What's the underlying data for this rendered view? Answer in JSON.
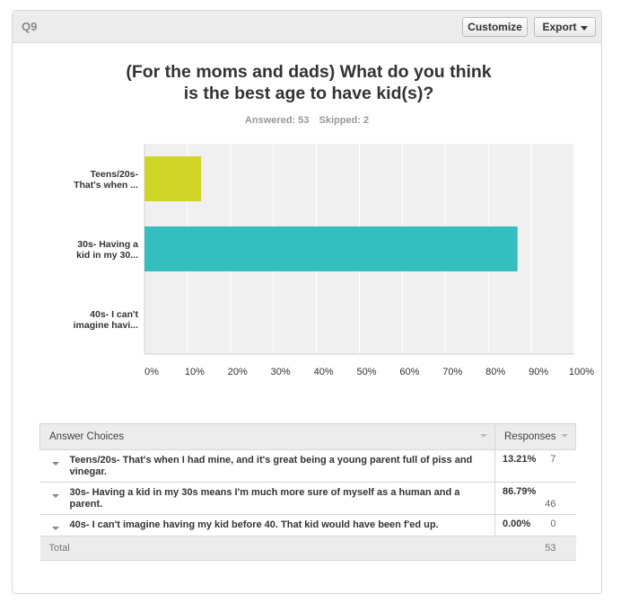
{
  "header": {
    "question_number": "Q9",
    "customize_label": "Customize",
    "export_label": "Export"
  },
  "title_line1": "(For the moms and dads) What do you think",
  "title_line2": "is the best age to have kid(s)?",
  "stats": {
    "answered": "Answered: 53",
    "skipped": "Skipped: 2"
  },
  "chart_data": {
    "type": "bar",
    "orientation": "horizontal",
    "categories": [
      [
        "Teens/20s-",
        "That's when ..."
      ],
      [
        "30s- Having a",
        "kid in my 30..."
      ],
      [
        "40s- I can't",
        "imagine havi..."
      ]
    ],
    "values": [
      13.21,
      86.79,
      0
    ],
    "colors": [
      "#d0d628",
      "#35bec0",
      "#b0b0b0"
    ],
    "xlim": [
      0,
      100
    ],
    "xticks": [
      "0%",
      "10%",
      "20%",
      "30%",
      "40%",
      "50%",
      "60%",
      "70%",
      "80%",
      "90%",
      "100%"
    ],
    "grid": true
  },
  "table": {
    "col_choices": "Answer Choices",
    "col_responses": "Responses",
    "rows": [
      {
        "choice": "Teens/20s- That's when I had mine, and it's great being a young parent full of piss and vinegar.",
        "percent": "13.21%",
        "count": "7"
      },
      {
        "choice": "30s- Having a kid in my 30s means I'm much more sure of myself as a human and a parent.",
        "percent": "86.79%",
        "count": "46"
      },
      {
        "choice": "40s- I can't imagine having my kid before 40. That kid would have been f'ed up.",
        "percent": "0.00%",
        "count": "0"
      }
    ],
    "total_label": "Total",
    "total_count": "53"
  }
}
